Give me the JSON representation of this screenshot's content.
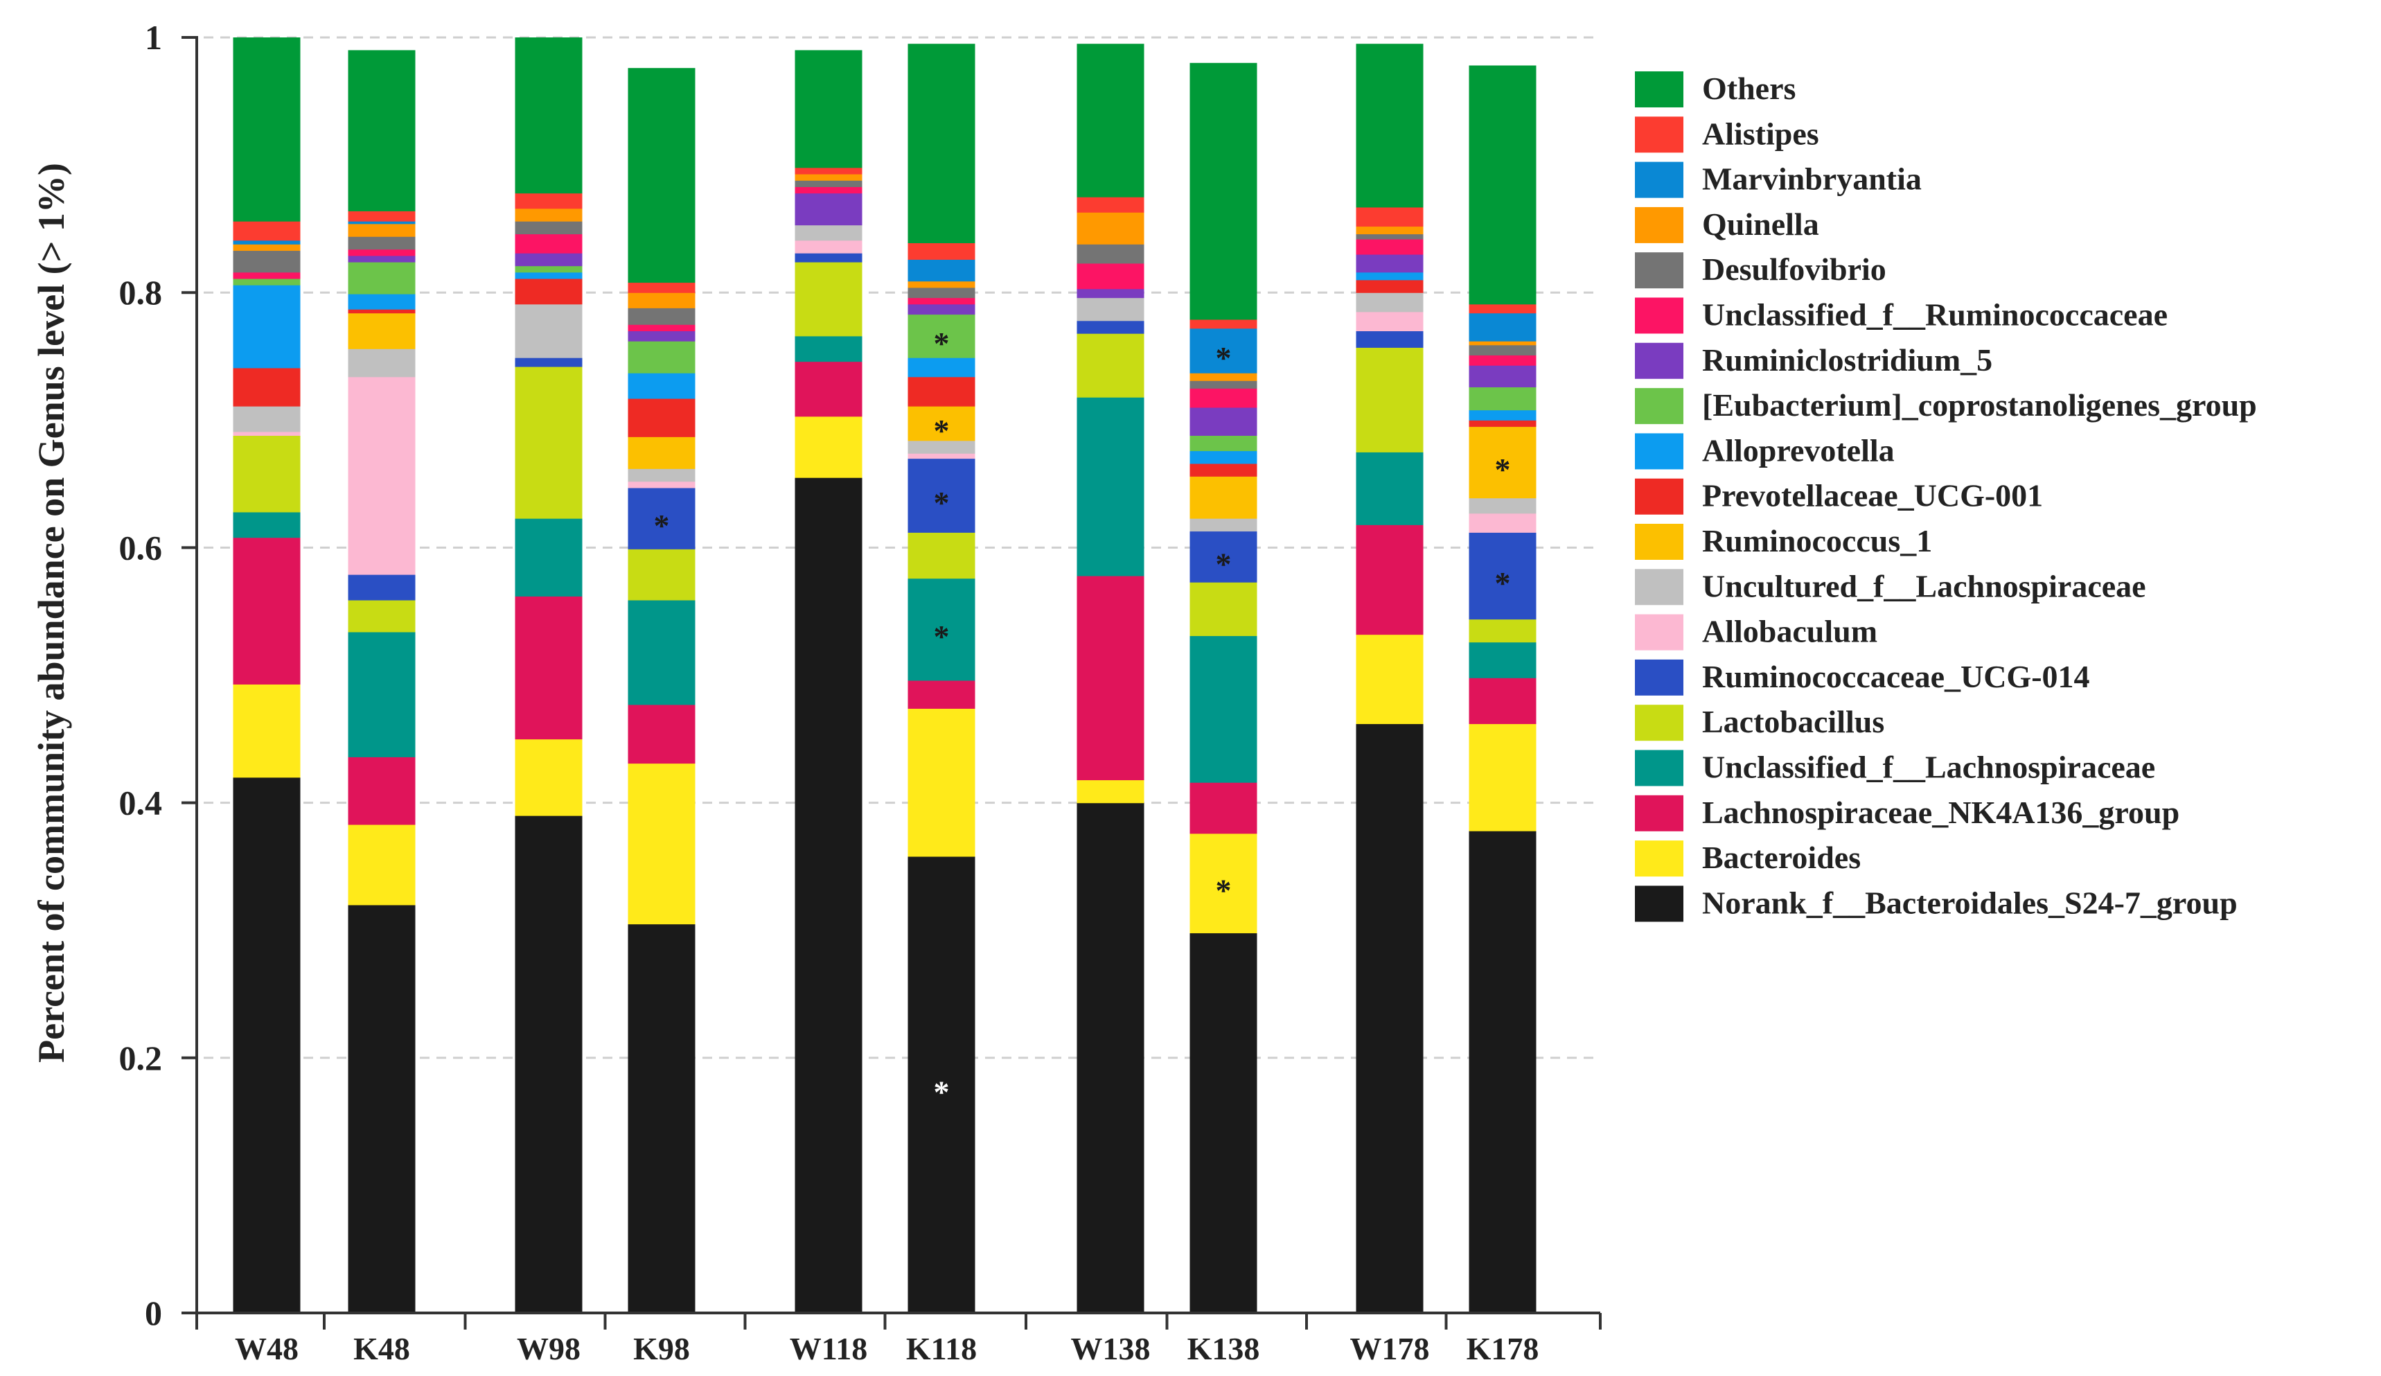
{
  "chart_data": {
    "type": "bar",
    "stacked": true,
    "title": "",
    "xlabel": "",
    "ylabel": "Percent of community abundance on Genus level (> 1%)",
    "ylim": [
      0,
      1
    ],
    "yticks": [
      "0",
      "0.2",
      "0.4",
      "0.6",
      "0.8",
      "1"
    ],
    "grid": true,
    "legend_position": "right",
    "categories": [
      "W48",
      "K48",
      "W98",
      "K98",
      "W118",
      "K118",
      "W138",
      "K138",
      "W178",
      "K178"
    ],
    "series": [
      {
        "name": "Norank_f__Bacteroidales_S24-7_group",
        "color": "#1a1a1a",
        "values": [
          0.42,
          0.32,
          0.39,
          0.305,
          0.655,
          0.358,
          0.4,
          0.298,
          0.462,
          0.378
        ]
      },
      {
        "name": "Bacteroides",
        "color": "#ffea1a",
        "values": [
          0.073,
          0.063,
          0.06,
          0.126,
          0.048,
          0.116,
          0.018,
          0.078,
          0.07,
          0.084
        ]
      },
      {
        "name": "Lachnospiraceae_NK4A136_group",
        "color": "#e0145a",
        "values": [
          0.115,
          0.053,
          0.112,
          0.046,
          0.043,
          0.022,
          0.16,
          0.04,
          0.086,
          0.036
        ]
      },
      {
        "name": "Unclassified_f__Lachnospiraceae",
        "color": "#00968a",
        "values": [
          0.02,
          0.098,
          0.061,
          0.082,
          0.02,
          0.08,
          0.14,
          0.115,
          0.057,
          0.028
        ]
      },
      {
        "name": "Lactobacillus",
        "color": "#c8dc14",
        "values": [
          0.06,
          0.025,
          0.119,
          0.04,
          0.058,
          0.036,
          0.05,
          0.042,
          0.082,
          0.018
        ]
      },
      {
        "name": "Ruminococcaceae_UCG-014",
        "color": "#2a4fc4",
        "values": [
          0.0,
          0.02,
          0.007,
          0.048,
          0.007,
          0.058,
          0.01,
          0.04,
          0.013,
          0.068
        ]
      },
      {
        "name": "Allobaculum",
        "color": "#fcb8d2",
        "values": [
          0.003,
          0.155,
          0.0,
          0.005,
          0.01,
          0.004,
          0.0,
          0.0,
          0.015,
          0.015
        ]
      },
      {
        "name": "Uncultured_f__Lachnospiraceae",
        "color": "#c0c0c0",
        "values": [
          0.02,
          0.022,
          0.042,
          0.01,
          0.012,
          0.01,
          0.018,
          0.01,
          0.015,
          0.012
        ]
      },
      {
        "name": "Ruminococcus_1",
        "color": "#fcc000",
        "values": [
          0.0,
          0.028,
          0.0,
          0.025,
          0.0,
          0.027,
          0.0,
          0.033,
          0.0,
          0.056
        ]
      },
      {
        "name": "Prevotellaceae_UCG-001",
        "color": "#ee2a24",
        "values": [
          0.03,
          0.003,
          0.02,
          0.03,
          0.0,
          0.023,
          0.0,
          0.01,
          0.01,
          0.005
        ]
      },
      {
        "name": "Alloprevotella",
        "color": "#0c9cf0",
        "values": [
          0.065,
          0.012,
          0.005,
          0.02,
          0.0,
          0.015,
          0.0,
          0.01,
          0.006,
          0.008
        ]
      },
      {
        "name": "[Eubacterium]_coprostanoligenes_group",
        "color": "#6cc44a",
        "values": [
          0.005,
          0.025,
          0.005,
          0.025,
          0.0,
          0.034,
          0.0,
          0.012,
          0.0,
          0.018
        ]
      },
      {
        "name": "Ruminiclostridium_5",
        "color": "#7a3cc0",
        "values": [
          0.0,
          0.005,
          0.01,
          0.008,
          0.025,
          0.008,
          0.007,
          0.022,
          0.014,
          0.017
        ]
      },
      {
        "name": "Unclassified_f__Ruminococcaceae",
        "color": "#fc1464",
        "values": [
          0.005,
          0.005,
          0.015,
          0.005,
          0.005,
          0.005,
          0.02,
          0.015,
          0.012,
          0.008
        ]
      },
      {
        "name": "Desulfovibrio",
        "color": "#747474",
        "values": [
          0.017,
          0.01,
          0.01,
          0.013,
          0.005,
          0.008,
          0.015,
          0.006,
          0.004,
          0.008
        ]
      },
      {
        "name": "Quinella",
        "color": "#ff9900",
        "values": [
          0.005,
          0.01,
          0.01,
          0.012,
          0.005,
          0.005,
          0.025,
          0.006,
          0.006,
          0.003
        ]
      },
      {
        "name": "Marvinbryantia",
        "color": "#0a88d4",
        "values": [
          0.003,
          0.002,
          0.0,
          0.0,
          0.0,
          0.017,
          0.0,
          0.035,
          0.0,
          0.022
        ]
      },
      {
        "name": "Alistipes",
        "color": "#fc3c30",
        "values": [
          0.015,
          0.008,
          0.012,
          0.008,
          0.005,
          0.013,
          0.012,
          0.007,
          0.015,
          0.007
        ]
      },
      {
        "name": "Others",
        "color": "#009a38",
        "values": [
          0.144,
          0.126,
          0.122,
          0.168,
          0.092,
          0.156,
          0.12,
          0.201,
          0.128,
          0.187
        ]
      }
    ],
    "significance": {
      "marker": "*",
      "marks": [
        {
          "category": "K98",
          "series": "Ruminococcaceae_UCG-014",
          "color": "#1a1a1a"
        },
        {
          "category": "K118",
          "series": "Norank_f__Bacteroidales_S24-7_group",
          "color": "#ffffff"
        },
        {
          "category": "K118",
          "series": "Unclassified_f__Lachnospiraceae",
          "color": "#1a1a1a"
        },
        {
          "category": "K118",
          "series": "Ruminococcaceae_UCG-014",
          "color": "#1a1a1a"
        },
        {
          "category": "K118",
          "series": "Ruminococcus_1",
          "color": "#1a1a1a"
        },
        {
          "category": "K118",
          "series": "[Eubacterium]_coprostanoligenes_group",
          "color": "#1a1a1a"
        },
        {
          "category": "K138",
          "series": "Bacteroides",
          "color": "#1a1a1a"
        },
        {
          "category": "K138",
          "series": "Ruminococcaceae_UCG-014",
          "color": "#1a1a1a"
        },
        {
          "category": "K138",
          "series": "Marvinbryantia",
          "color": "#1a1a1a"
        },
        {
          "category": "K178",
          "series": "Ruminococcaceae_UCG-014",
          "color": "#1a1a1a"
        },
        {
          "category": "K178",
          "series": "Ruminococcus_1",
          "color": "#1a1a1a"
        }
      ]
    }
  }
}
